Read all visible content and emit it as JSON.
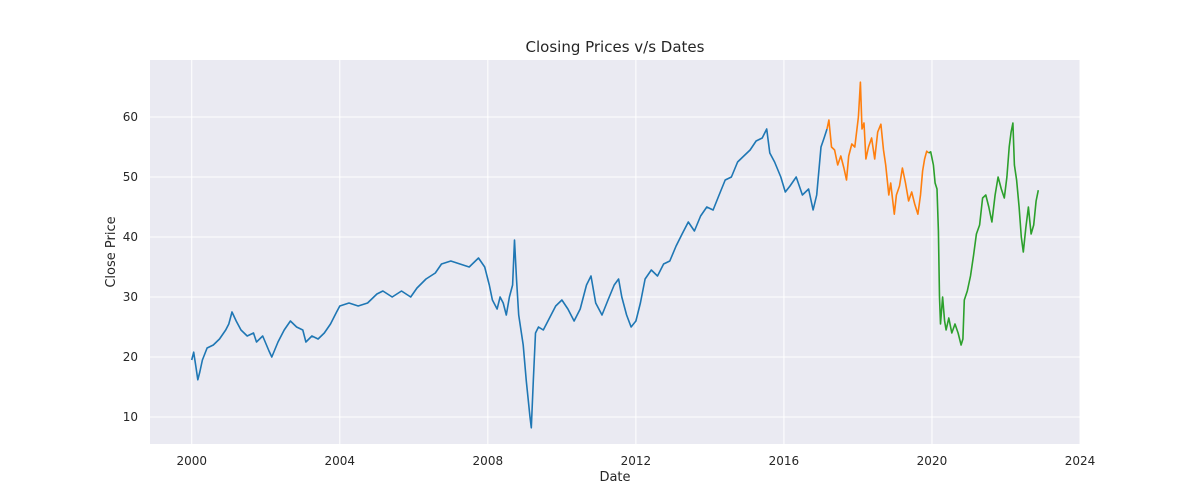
{
  "chart_data": {
    "type": "line",
    "title": "Closing Prices v/s Dates",
    "xlabel": "Date",
    "ylabel": "Close Price",
    "xlim": [
      "1998-11-15",
      "2024-01-01"
    ],
    "ylim": [
      5.5,
      69.5
    ],
    "xticks": [
      {
        "label": "2000",
        "value": "2000-01-01"
      },
      {
        "label": "2004",
        "value": "2004-01-01"
      },
      {
        "label": "2008",
        "value": "2008-01-01"
      },
      {
        "label": "2012",
        "value": "2012-01-01"
      },
      {
        "label": "2016",
        "value": "2016-01-01"
      },
      {
        "label": "2020",
        "value": "2020-01-01"
      },
      {
        "label": "2024",
        "value": "2024-01-01"
      }
    ],
    "yticks": [
      10,
      20,
      30,
      40,
      50,
      60
    ],
    "grid": true,
    "background": "#eaeaf2",
    "series": [
      {
        "color": "#1f77b4",
        "points": [
          [
            "2000-01-01",
            19.5
          ],
          [
            "2000-01-20",
            20.8
          ],
          [
            "2000-02-10",
            18.5
          ],
          [
            "2000-03-01",
            16.2
          ],
          [
            "2000-03-20",
            17.5
          ],
          [
            "2000-04-15",
            19.5
          ],
          [
            "2000-06-01",
            21.5
          ],
          [
            "2000-08-01",
            22.0
          ],
          [
            "2000-10-01",
            23.0
          ],
          [
            "2000-12-01",
            24.5
          ],
          [
            "2001-01-01",
            25.5
          ],
          [
            "2001-02-01",
            27.5
          ],
          [
            "2001-03-15",
            26.0
          ],
          [
            "2001-05-01",
            24.5
          ],
          [
            "2001-07-01",
            23.5
          ],
          [
            "2001-09-01",
            24.0
          ],
          [
            "2001-10-01",
            22.5
          ],
          [
            "2001-12-01",
            23.5
          ],
          [
            "2002-02-01",
            21.0
          ],
          [
            "2002-03-01",
            20.0
          ],
          [
            "2002-05-01",
            22.5
          ],
          [
            "2002-07-01",
            24.5
          ],
          [
            "2002-09-01",
            26.0
          ],
          [
            "2002-11-01",
            25.0
          ],
          [
            "2003-01-01",
            24.5
          ],
          [
            "2003-02-01",
            22.5
          ],
          [
            "2003-04-01",
            23.5
          ],
          [
            "2003-06-01",
            23.0
          ],
          [
            "2003-08-01",
            24.0
          ],
          [
            "2003-10-01",
            25.5
          ],
          [
            "2003-12-01",
            27.5
          ],
          [
            "2004-01-01",
            28.5
          ],
          [
            "2004-04-01",
            29.0
          ],
          [
            "2004-07-01",
            28.5
          ],
          [
            "2004-10-01",
            29.0
          ],
          [
            "2005-01-01",
            30.5
          ],
          [
            "2005-03-01",
            31.0
          ],
          [
            "2005-06-01",
            30.0
          ],
          [
            "2005-09-01",
            31.0
          ],
          [
            "2005-12-01",
            30.0
          ],
          [
            "2006-02-01",
            31.5
          ],
          [
            "2006-05-01",
            33.0
          ],
          [
            "2006-08-01",
            34.0
          ],
          [
            "2006-10-01",
            35.5
          ],
          [
            "2007-01-01",
            36.0
          ],
          [
            "2007-04-01",
            35.5
          ],
          [
            "2007-07-01",
            35.0
          ],
          [
            "2007-10-01",
            36.5
          ],
          [
            "2007-12-01",
            35.0
          ],
          [
            "2008-01-15",
            32.0
          ],
          [
            "2008-02-15",
            29.5
          ],
          [
            "2008-04-01",
            28.0
          ],
          [
            "2008-05-01",
            30.0
          ],
          [
            "2008-06-01",
            29.0
          ],
          [
            "2008-07-01",
            27.0
          ],
          [
            "2008-08-01",
            30.0
          ],
          [
            "2008-09-01",
            32.0
          ],
          [
            "2008-09-20",
            39.5
          ],
          [
            "2008-10-10",
            33.0
          ],
          [
            "2008-11-01",
            27.0
          ],
          [
            "2008-12-15",
            22.0
          ],
          [
            "2009-01-15",
            16.0
          ],
          [
            "2009-02-20",
            10.0
          ],
          [
            "2009-03-05",
            8.2
          ],
          [
            "2009-03-25",
            16.0
          ],
          [
            "2009-04-15",
            24.0
          ],
          [
            "2009-05-15",
            25.0
          ],
          [
            "2009-07-01",
            24.5
          ],
          [
            "2009-09-01",
            26.5
          ],
          [
            "2009-11-01",
            28.5
          ],
          [
            "2010-01-01",
            29.5
          ],
          [
            "2010-03-01",
            28.0
          ],
          [
            "2010-05-01",
            26.0
          ],
          [
            "2010-07-01",
            28.0
          ],
          [
            "2010-09-01",
            32.0
          ],
          [
            "2010-10-15",
            33.5
          ],
          [
            "2010-12-01",
            29.0
          ],
          [
            "2011-02-01",
            27.0
          ],
          [
            "2011-04-01",
            29.5
          ],
          [
            "2011-06-01",
            32.0
          ],
          [
            "2011-07-15",
            33.0
          ],
          [
            "2011-08-15",
            30.0
          ],
          [
            "2011-10-01",
            27.0
          ],
          [
            "2011-11-15",
            25.0
          ],
          [
            "2012-01-01",
            26.0
          ],
          [
            "2012-02-15",
            29.0
          ],
          [
            "2012-04-01",
            33.0
          ],
          [
            "2012-06-01",
            34.5
          ],
          [
            "2012-08-01",
            33.5
          ],
          [
            "2012-10-01",
            35.5
          ],
          [
            "2012-12-01",
            36.0
          ],
          [
            "2013-02-01",
            38.5
          ],
          [
            "2013-04-01",
            40.5
          ],
          [
            "2013-06-01",
            42.5
          ],
          [
            "2013-08-01",
            41.0
          ],
          [
            "2013-10-01",
            43.5
          ],
          [
            "2013-12-01",
            45.0
          ],
          [
            "2014-02-01",
            44.5
          ],
          [
            "2014-04-01",
            47.0
          ],
          [
            "2014-06-01",
            49.5
          ],
          [
            "2014-08-01",
            50.0
          ],
          [
            "2014-10-01",
            52.5
          ],
          [
            "2014-12-01",
            53.5
          ],
          [
            "2015-02-01",
            54.5
          ],
          [
            "2015-04-01",
            56.0
          ],
          [
            "2015-06-01",
            56.5
          ],
          [
            "2015-07-15",
            58.0
          ],
          [
            "2015-08-15",
            54.0
          ],
          [
            "2015-10-01",
            52.5
          ],
          [
            "2015-12-01",
            50.0
          ],
          [
            "2016-01-15",
            47.5
          ],
          [
            "2016-03-01",
            48.5
          ],
          [
            "2016-05-01",
            50.0
          ],
          [
            "2016-07-01",
            47.0
          ],
          [
            "2016-09-01",
            48.0
          ],
          [
            "2016-10-15",
            44.5
          ],
          [
            "2016-11-20",
            47.0
          ],
          [
            "2017-01-01",
            55.0
          ],
          [
            "2017-02-01",
            56.5
          ],
          [
            "2017-03-01",
            58.0
          ]
        ]
      },
      {
        "color": "#ff7f0e",
        "points": [
          [
            "2017-03-01",
            58.0
          ],
          [
            "2017-03-20",
            59.5
          ],
          [
            "2017-04-15",
            55.0
          ],
          [
            "2017-05-15",
            54.5
          ],
          [
            "2017-06-15",
            52.0
          ],
          [
            "2017-07-15",
            53.5
          ],
          [
            "2017-08-15",
            51.5
          ],
          [
            "2017-09-10",
            49.5
          ],
          [
            "2017-10-01",
            53.5
          ],
          [
            "2017-11-01",
            55.5
          ],
          [
            "2017-12-01",
            55.0
          ],
          [
            "2018-01-05",
            60.0
          ],
          [
            "2018-01-25",
            65.8
          ],
          [
            "2018-02-10",
            58.0
          ],
          [
            "2018-03-01",
            59.0
          ],
          [
            "2018-03-20",
            53.0
          ],
          [
            "2018-04-15",
            55.0
          ],
          [
            "2018-05-15",
            56.5
          ],
          [
            "2018-06-15",
            53.0
          ],
          [
            "2018-07-15",
            57.5
          ],
          [
            "2018-08-15",
            58.8
          ],
          [
            "2018-09-10",
            54.5
          ],
          [
            "2018-10-01",
            52.0
          ],
          [
            "2018-11-01",
            47.0
          ],
          [
            "2018-11-20",
            49.0
          ],
          [
            "2018-12-25",
            43.8
          ],
          [
            "2019-01-15",
            47.0
          ],
          [
            "2019-02-15",
            48.5
          ],
          [
            "2019-03-15",
            51.5
          ],
          [
            "2019-04-15",
            49.0
          ],
          [
            "2019-05-15",
            46.0
          ],
          [
            "2019-06-15",
            47.5
          ],
          [
            "2019-07-15",
            45.5
          ],
          [
            "2019-08-15",
            43.8
          ],
          [
            "2019-09-10",
            47.0
          ],
          [
            "2019-10-01",
            51.0
          ],
          [
            "2019-10-20",
            53.0
          ],
          [
            "2019-11-10",
            54.3
          ],
          [
            "2019-12-01",
            54.0
          ]
        ]
      },
      {
        "color": "#2ca02c",
        "points": [
          [
            "2019-12-01",
            54.0
          ],
          [
            "2019-12-20",
            54.2
          ],
          [
            "2020-01-15",
            52.0
          ],
          [
            "2020-02-01",
            49.0
          ],
          [
            "2020-02-20",
            48.0
          ],
          [
            "2020-03-05",
            41.0
          ],
          [
            "2020-03-15",
            30.0
          ],
          [
            "2020-03-25",
            25.5
          ],
          [
            "2020-04-15",
            30.0
          ],
          [
            "2020-05-05",
            26.0
          ],
          [
            "2020-05-20",
            24.5
          ],
          [
            "2020-06-15",
            26.5
          ],
          [
            "2020-07-15",
            24.0
          ],
          [
            "2020-08-15",
            25.5
          ],
          [
            "2020-09-15",
            24.0
          ],
          [
            "2020-10-15",
            22.0
          ],
          [
            "2020-11-01",
            23.0
          ],
          [
            "2020-11-15",
            29.5
          ],
          [
            "2020-12-15",
            31.0
          ],
          [
            "2021-01-15",
            33.5
          ],
          [
            "2021-02-15",
            37.0
          ],
          [
            "2021-03-15",
            40.5
          ],
          [
            "2021-04-15",
            42.0
          ],
          [
            "2021-05-15",
            46.5
          ],
          [
            "2021-06-15",
            47.0
          ],
          [
            "2021-07-15",
            45.0
          ],
          [
            "2021-08-15",
            42.5
          ],
          [
            "2021-09-15",
            47.0
          ],
          [
            "2021-10-15",
            50.0
          ],
          [
            "2021-11-15",
            48.0
          ],
          [
            "2021-12-15",
            46.5
          ],
          [
            "2022-01-10",
            50.0
          ],
          [
            "2022-02-01",
            55.0
          ],
          [
            "2022-02-20",
            57.5
          ],
          [
            "2022-03-10",
            59.0
          ],
          [
            "2022-03-25",
            52.0
          ],
          [
            "2022-04-15",
            49.5
          ],
          [
            "2022-05-10",
            45.0
          ],
          [
            "2022-06-01",
            40.0
          ],
          [
            "2022-06-20",
            37.5
          ],
          [
            "2022-07-15",
            41.5
          ],
          [
            "2022-08-10",
            45.0
          ],
          [
            "2022-09-05",
            40.5
          ],
          [
            "2022-10-01",
            42.0
          ],
          [
            "2022-10-25",
            46.0
          ],
          [
            "2022-11-15",
            47.8
          ]
        ]
      }
    ]
  }
}
